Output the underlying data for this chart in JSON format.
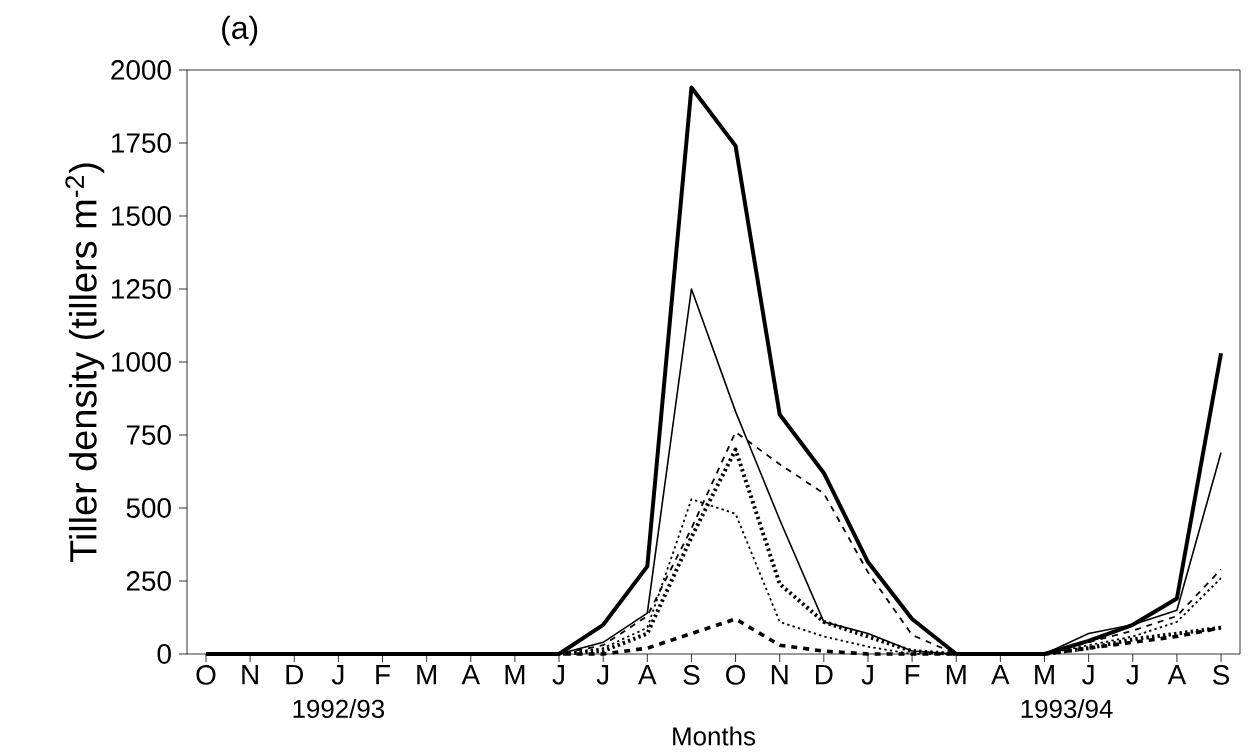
{
  "chart_data": {
    "type": "line",
    "ylabel": "Tiller density (tillers m$^{-2}$)",
    "xlabel": "Months",
    "annotations": [
      "(a)",
      "1992/93",
      "1993/94"
    ],
    "categories": [
      "O",
      "N",
      "D",
      "J",
      "F",
      "M",
      "A",
      "M",
      "J",
      "J",
      "A",
      "S",
      "O",
      "N",
      "D",
      "J",
      "F",
      "M",
      "A",
      "M",
      "J",
      "J",
      "A",
      "S"
    ],
    "ylim": [
      0,
      2000
    ],
    "yticks": [
      0,
      250,
      500,
      750,
      1000,
      1250,
      1500,
      1750,
      2000
    ],
    "grid": false,
    "marker": "none",
    "series": [
      {
        "color": "#000000",
        "line_style": "solid",
        "values": [
          0,
          0,
          0,
          0,
          0,
          0,
          0,
          0,
          0,
          100,
          300,
          1940,
          1740,
          820,
          620,
          315,
          120,
          0,
          0,
          0,
          45,
          100,
          190,
          1030
        ]
      },
      {
        "color": "#000000",
        "line_style": "solid",
        "values": [
          0,
          0,
          0,
          0,
          0,
          0,
          0,
          0,
          0,
          40,
          140,
          1250,
          830,
          460,
          110,
          70,
          10,
          0,
          0,
          0,
          70,
          100,
          150,
          690
        ]
      },
      {
        "color": "#000000",
        "line_style": "dashed",
        "values": [
          0,
          0,
          0,
          0,
          0,
          0,
          0,
          0,
          0,
          30,
          130,
          430,
          760,
          650,
          550,
          280,
          65,
          0,
          0,
          0,
          40,
          80,
          130,
          290
        ]
      },
      {
        "color": "#000000",
        "line_style": "dotted",
        "values": [
          0,
          0,
          0,
          0,
          0,
          0,
          0,
          0,
          0,
          20,
          90,
          530,
          480,
          110,
          60,
          25,
          0,
          0,
          0,
          0,
          30,
          60,
          110,
          260
        ]
      },
      {
        "color": "#000000",
        "line_style": "dotted",
        "values": [
          0,
          0,
          0,
          0,
          0,
          0,
          0,
          0,
          0,
          10,
          70,
          400,
          700,
          240,
          110,
          60,
          10,
          0,
          0,
          0,
          20,
          50,
          70,
          90
        ]
      },
      {
        "color": "#000000",
        "line_style": "dashed",
        "values": [
          0,
          0,
          0,
          0,
          0,
          0,
          0,
          0,
          0,
          0,
          20,
          70,
          120,
          30,
          10,
          0,
          0,
          0,
          0,
          0,
          20,
          40,
          60,
          90
        ]
      }
    ]
  }
}
